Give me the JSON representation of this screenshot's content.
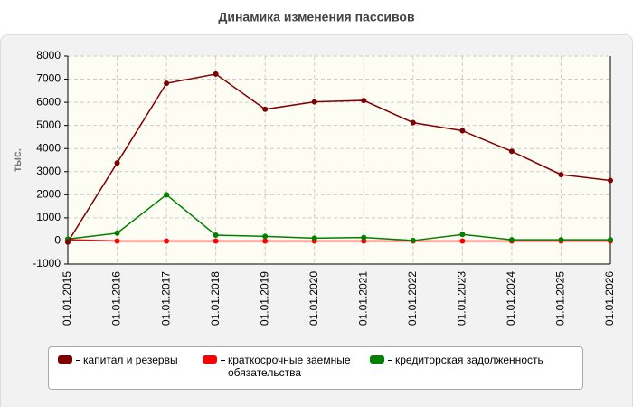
{
  "chart_data": {
    "type": "line",
    "title": "Динамика изменения пассивов",
    "y_label": "тыс.",
    "categories": [
      "01.01.2015",
      "01.01.2016",
      "01.01.2017",
      "01.01.2018",
      "01.01.2019",
      "01.01.2020",
      "01.01.2021",
      "01.01.2022",
      "01.01.2023",
      "01.01.2024",
      "01.01.2025",
      "01.01.2026"
    ],
    "series": [
      {
        "name": "капитал и резервы",
        "color": "#800000",
        "values": [
          -50,
          3380,
          6820,
          7220,
          5700,
          6020,
          6080,
          5120,
          4770,
          3880,
          2870,
          2620
        ]
      },
      {
        "name": "краткосрочные заемные обязательства",
        "color": "#ff0000",
        "values": [
          50,
          0,
          0,
          0,
          0,
          0,
          0,
          0,
          0,
          0,
          0,
          0
        ]
      },
      {
        "name": "кредиторская задолженность",
        "color": "#008000",
        "values": [
          80,
          340,
          2000,
          250,
          200,
          120,
          150,
          20,
          280,
          50,
          50,
          50
        ]
      }
    ],
    "ylim": [
      -1000,
      8000
    ],
    "yticks": [
      -1000,
      0,
      1000,
      2000,
      3000,
      4000,
      5000,
      6000,
      7000,
      8000
    ],
    "grid": true
  }
}
